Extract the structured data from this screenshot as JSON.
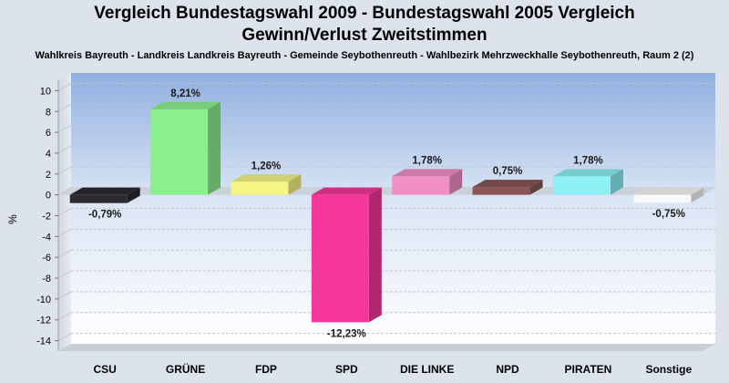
{
  "header": {
    "title_line1": "Vergleich Bundestagswahl 2009 - Bundestagswahl 2005 Vergleich",
    "title_line2": "Gewinn/Verlust Zweitstimmen",
    "subtitle": "Wahlkreis Bayreuth - Landkreis Landkreis Bayreuth - Gemeinde Seybothenreuth - Wahlbezirk Mehrzweckhalle Seybothenreuth, Raum 2 (2)"
  },
  "chart_data": {
    "type": "bar",
    "title": "Vergleich Bundestagswahl 2009 - Bundestagswahl 2005 Vergleich Gewinn/Verlust Zweitstimmen",
    "subtitle": "Wahlkreis Bayreuth - Landkreis Landkreis Bayreuth - Gemeinde Seybothenreuth - Wahlbezirk Mehrzweckhalle Seybothenreuth, Raum 2 (2)",
    "ylabel": "%",
    "xlabel": "",
    "ylim": [
      -15,
      11
    ],
    "yticks": [
      10,
      8,
      6,
      4,
      2,
      0,
      -2,
      -4,
      -6,
      -8,
      -10,
      -12,
      -14
    ],
    "grid": true,
    "categories": [
      "CSU",
      "GRÜNE",
      "FDP",
      "SPD",
      "DIE LINKE",
      "NPD",
      "PIRATEN",
      "Sonstige"
    ],
    "values": [
      -0.79,
      8.21,
      1.26,
      -12.23,
      1.78,
      0.75,
      1.78,
      -0.75
    ],
    "labels": [
      "-0,79%",
      "8,21%",
      "1,26%",
      "-12,23%",
      "1,78%",
      "0,75%",
      "1,78%",
      "-0,75%"
    ],
    "colors": [
      "#2b2b30",
      "#8cf08c",
      "#f5f584",
      "#f5369a",
      "#f08fc6",
      "#8a5656",
      "#8cf0f5",
      "#f8f8fa"
    ]
  }
}
